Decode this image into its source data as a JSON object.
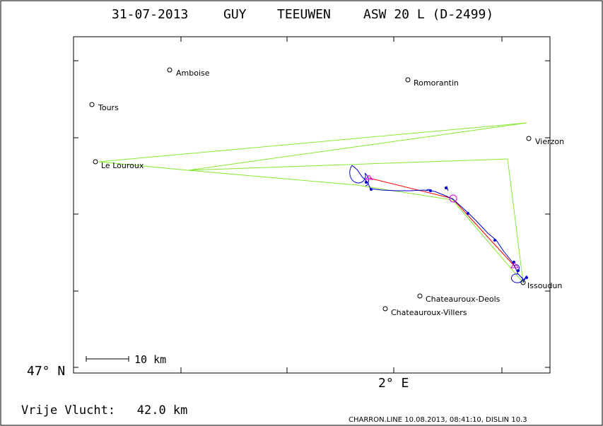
{
  "title": {
    "date": "31-07-2013",
    "pilot_first": "GUY",
    "pilot_last": "TEEUWEN",
    "glider": "ASW 20 L (D-2499)"
  },
  "axes": {
    "y_label": "47° N",
    "x_label": "2° E"
  },
  "scale_bar": {
    "label": "10 km"
  },
  "places": [
    {
      "name": "Amboise"
    },
    {
      "name": "Romorantin"
    },
    {
      "name": "Tours"
    },
    {
      "name": "Vierzon"
    },
    {
      "name": "Le Louroux"
    },
    {
      "name": "Issoudun"
    },
    {
      "name": "Chateauroux-Deols"
    },
    {
      "name": "Chateauroux-Villers"
    }
  ],
  "footer": {
    "free_flight": "Vrije Vlucht:   42.0 km",
    "credit": "CHARRON.LINE 10.08.2013, 08:41:10, DISLIN 10.3"
  },
  "colors": {
    "task": "#88e830",
    "track": "#0000cc",
    "free_flight": "#ff0000",
    "turnpoint": "#dd00dd"
  }
}
